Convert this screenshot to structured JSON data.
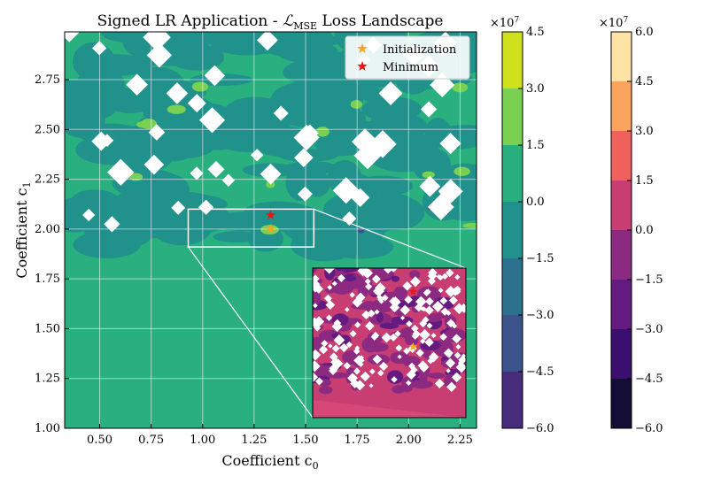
{
  "chart_data": {
    "type": "contourf",
    "title": "Signed LR Application - ",
    "title_math_main": "ℒ",
    "title_math_sub": "MSE",
    "title_suffix": " Loss Landscape",
    "xlabel_main": "Coefficient c",
    "xlabel_sub": "0",
    "ylabel_main": "Coefficient c",
    "ylabel_sub": "1",
    "xlim": [
      0.33,
      2.33
    ],
    "ylim": [
      1.0,
      2.99
    ],
    "xticks": [
      0.5,
      0.75,
      1.0,
      1.25,
      1.5,
      1.75,
      2.0,
      2.25
    ],
    "xtick_labels": [
      "0.50",
      "0.75",
      "1.00",
      "1.25",
      "1.50",
      "1.75",
      "2.00",
      "2.25"
    ],
    "yticks": [
      1.0,
      1.25,
      1.5,
      1.75,
      2.0,
      2.25,
      2.5,
      2.75
    ],
    "ytick_labels": [
      "1.00",
      "1.25",
      "1.50",
      "1.75",
      "2.00",
      "2.25",
      "2.50",
      "2.75"
    ],
    "grid": true,
    "legend_position": "top-right",
    "points": [
      {
        "name": "Initialization",
        "x": 1.33,
        "y": 2.0,
        "color": "#f5a623",
        "marker": "star"
      },
      {
        "name": "Minimum",
        "x": 1.33,
        "y": 2.07,
        "color": "#e8151b",
        "marker": "star"
      }
    ],
    "zoom_box": {
      "x0": 0.93,
      "x1": 1.54,
      "y0": 1.91,
      "y1": 2.1
    },
    "colorbar1": {
      "multiplier": "×10",
      "exponent": "7",
      "ticks": [
        4.5,
        3.0,
        1.5,
        0.0,
        -1.5,
        -3.0,
        -4.5,
        -6.0
      ],
      "tick_labels": [
        "4.5",
        "3.0",
        "1.5",
        "0.0",
        "−1.5",
        "−3.0",
        "−4.5",
        "−6.0"
      ],
      "colors": [
        "#d0e11c",
        "#7ad151",
        "#2ab07f",
        "#21918c",
        "#2c728e",
        "#3b528b",
        "#472d7b"
      ]
    },
    "colorbar2": {
      "multiplier": "×10",
      "exponent": "7",
      "ticks": [
        6.0,
        4.5,
        3.0,
        1.5,
        0.0,
        -1.5,
        -3.0,
        -4.5,
        -6.0
      ],
      "tick_labels": [
        "6.0",
        "4.5",
        "3.0",
        "1.5",
        "0.0",
        "−1.5",
        "−3.0",
        "−4.5",
        "−6.0"
      ],
      "colors": [
        "#fde4a5",
        "#fba35f",
        "#f0605d",
        "#c83e73",
        "#8c2981",
        "#641a80",
        "#3b0f70",
        "#140e36"
      ]
    },
    "background_color": "#2ab07f"
  }
}
